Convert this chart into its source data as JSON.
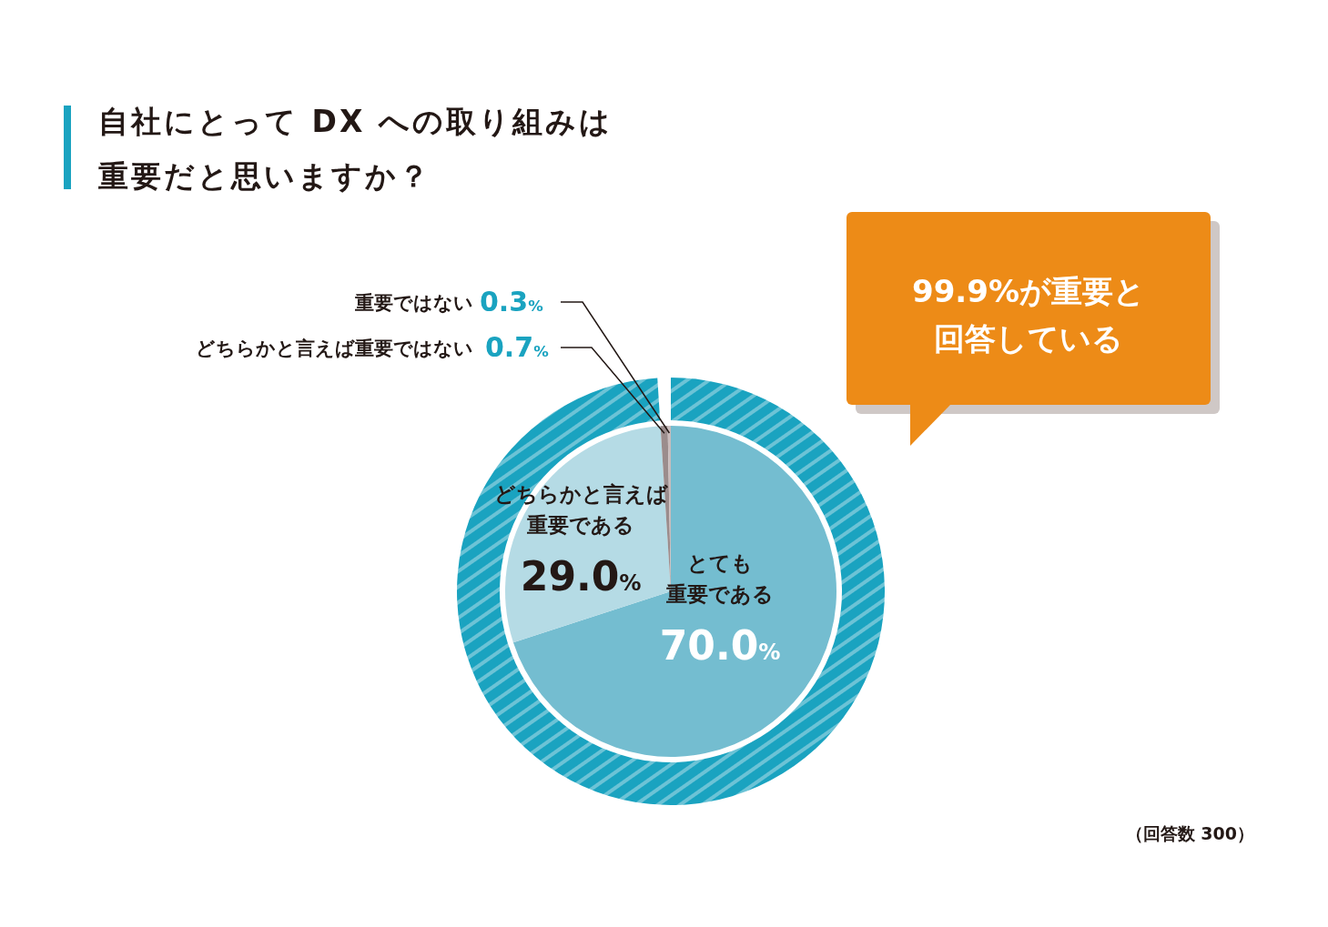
{
  "chart_data": {
    "type": "pie",
    "title": "自社にとって DX への取り組みは重要だと思いますか？",
    "categories": [
      "とても重要である",
      "どちらかと言えば重要である",
      "どちらかと言えば重要ではない",
      "重要ではない"
    ],
    "values": [
      70.0,
      29.0,
      0.7,
      0.3
    ],
    "value_labels": [
      "70.0%",
      "29.0%",
      "0.7%",
      "0.3%"
    ],
    "colors": [
      "#74bdd0",
      "#b5dbe5",
      "#9b8c8c",
      "#c9bcbc"
    ],
    "annotations": [
      "99.9%が重要と回答している",
      "（回答数 300）"
    ]
  }
}
